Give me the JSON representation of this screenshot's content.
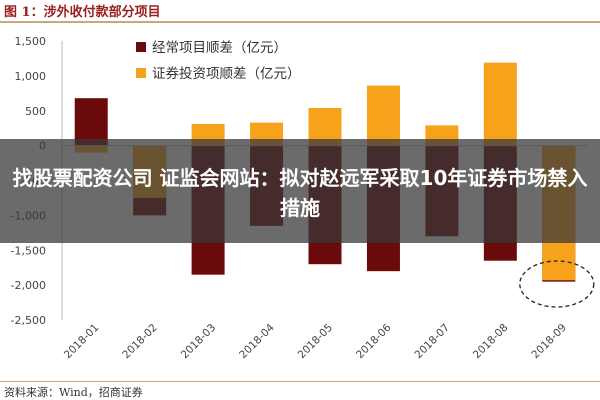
{
  "figure_title": "图 1：涉外收付款部分项目",
  "headline": "找股票配资公司 证监会网站：拟对赵远军采取10年证券市场禁入措施",
  "source_label": "资料来源：Wind，招商证券",
  "colors": {
    "current_account": "#6b0a0a",
    "securities": "#f7a21b",
    "overlay": "#373737",
    "title": "#9b1e1e"
  },
  "chart_data": {
    "type": "bar",
    "categories": [
      "2018-01",
      "2018-02",
      "2018-03",
      "2018-04",
      "2018-05",
      "2018-06",
      "2018-07",
      "2018-08",
      "2018-09"
    ],
    "series": [
      {
        "name": "经常项目顺差（亿元）",
        "color": "#6b0a0a",
        "values": [
          680,
          -1000,
          -1850,
          -1150,
          -1700,
          -1800,
          -1300,
          -1650,
          -1950
        ]
      },
      {
        "name": "证券投资项顺差（亿元）",
        "color": "#f7a21b",
        "values": [
          -100,
          -750,
          310,
          330,
          540,
          860,
          290,
          1190,
          -1930
        ]
      }
    ],
    "ylim": [
      -2500,
      1500
    ],
    "yticks": [
      -2500,
      -2000,
      -1500,
      -1000,
      -500,
      0,
      500,
      1000,
      1500
    ],
    "ytick_labels": [
      "-2,500",
      "-2,000",
      "-1,500",
      "-1,000",
      "-500",
      "0",
      "500",
      "1,000",
      "1,500"
    ],
    "legend_position": "top-left",
    "grid": false,
    "annotation": "dashed ellipse around 2018-09"
  }
}
